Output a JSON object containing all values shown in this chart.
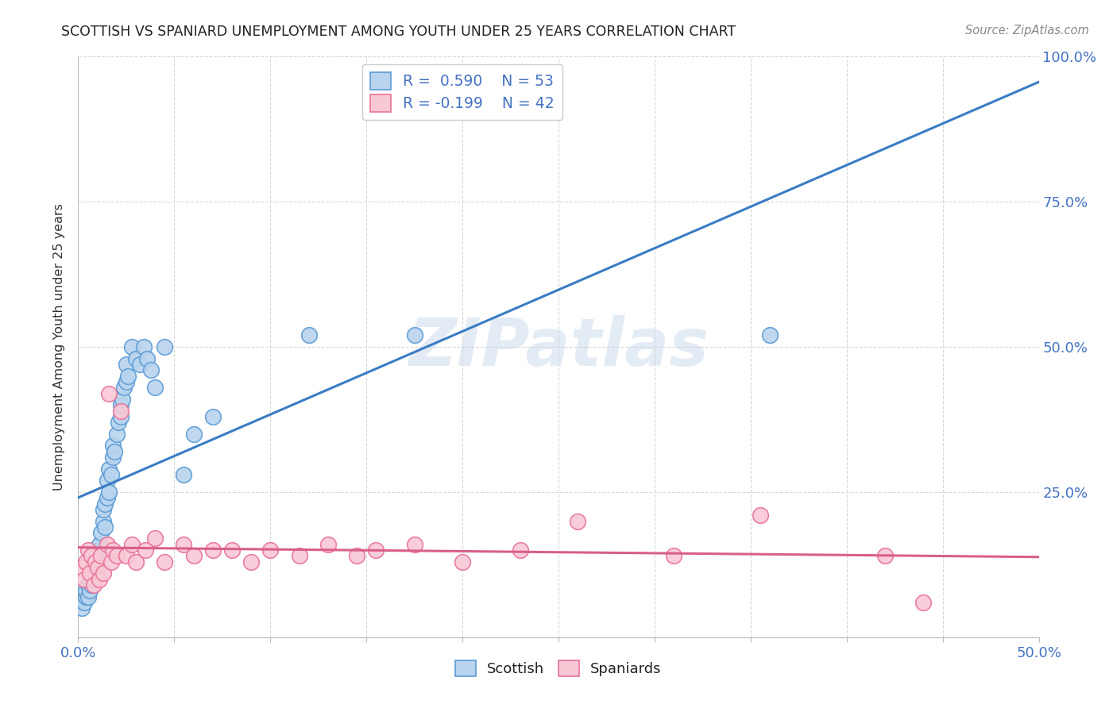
{
  "title": "SCOTTISH VS SPANIARD UNEMPLOYMENT AMONG YOUTH UNDER 25 YEARS CORRELATION CHART",
  "source": "Source: ZipAtlas.com",
  "ylabel": "Unemployment Among Youth under 25 years",
  "xlim": [
    0.0,
    0.5
  ],
  "ylim": [
    0.0,
    1.0
  ],
  "background_color": "#ffffff",
  "grid_color": "#d8d8d8",
  "watermark": "ZIPatlas",
  "scottish_fill": "#b8d4ee",
  "scottish_edge": "#5b9bd5",
  "spaniard_fill": "#f9c8d5",
  "spaniard_edge": "#e8729a",
  "trendline_scottish": "#3a7cc4",
  "trendline_spaniard": "#d95f8a",
  "scottish_x": [
    0.002,
    0.003,
    0.004,
    0.004,
    0.005,
    0.005,
    0.006,
    0.006,
    0.007,
    0.007,
    0.008,
    0.008,
    0.009,
    0.009,
    0.01,
    0.01,
    0.011,
    0.012,
    0.013,
    0.013,
    0.014,
    0.014,
    0.015,
    0.015,
    0.016,
    0.016,
    0.017,
    0.018,
    0.018,
    0.019,
    0.02,
    0.021,
    0.022,
    0.022,
    0.023,
    0.024,
    0.025,
    0.025,
    0.026,
    0.028,
    0.03,
    0.032,
    0.034,
    0.036,
    0.038,
    0.04,
    0.045,
    0.055,
    0.06,
    0.07,
    0.12,
    0.175,
    0.36
  ],
  "scottish_y": [
    0.05,
    0.06,
    0.07,
    0.08,
    0.07,
    0.09,
    0.08,
    0.1,
    0.09,
    0.11,
    0.1,
    0.12,
    0.11,
    0.14,
    0.12,
    0.15,
    0.16,
    0.18,
    0.2,
    0.22,
    0.19,
    0.23,
    0.24,
    0.27,
    0.25,
    0.29,
    0.28,
    0.31,
    0.33,
    0.32,
    0.35,
    0.37,
    0.38,
    0.4,
    0.41,
    0.43,
    0.44,
    0.47,
    0.45,
    0.5,
    0.48,
    0.47,
    0.5,
    0.48,
    0.46,
    0.43,
    0.5,
    0.28,
    0.35,
    0.38,
    0.52,
    0.52,
    0.52
  ],
  "spaniard_x": [
    0.002,
    0.003,
    0.004,
    0.005,
    0.006,
    0.007,
    0.008,
    0.009,
    0.01,
    0.011,
    0.012,
    0.013,
    0.015,
    0.016,
    0.017,
    0.018,
    0.02,
    0.022,
    0.025,
    0.028,
    0.03,
    0.035,
    0.04,
    0.045,
    0.055,
    0.06,
    0.07,
    0.08,
    0.09,
    0.1,
    0.115,
    0.13,
    0.145,
    0.155,
    0.175,
    0.2,
    0.23,
    0.26,
    0.31,
    0.355,
    0.42,
    0.44
  ],
  "spaniard_y": [
    0.12,
    0.1,
    0.13,
    0.15,
    0.11,
    0.14,
    0.09,
    0.13,
    0.12,
    0.1,
    0.14,
    0.11,
    0.16,
    0.42,
    0.13,
    0.15,
    0.14,
    0.39,
    0.14,
    0.16,
    0.13,
    0.15,
    0.17,
    0.13,
    0.16,
    0.14,
    0.15,
    0.15,
    0.13,
    0.15,
    0.14,
    0.16,
    0.14,
    0.15,
    0.16,
    0.13,
    0.15,
    0.2,
    0.14,
    0.21,
    0.14,
    0.06
  ]
}
